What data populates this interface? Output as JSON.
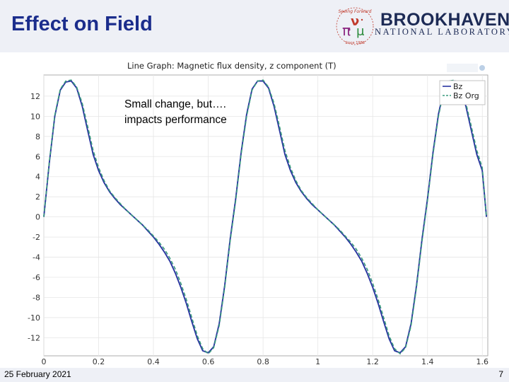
{
  "slide": {
    "title": "Effect on Field",
    "date": "25 February 2021",
    "page_number": "7",
    "annotation_line1": "Small change, but….",
    "annotation_line2": "impacts performance"
  },
  "logos": {
    "bnl_main": "BROOKHAVEN",
    "bnl_sub": "NATIONAL LABORATORY",
    "seal_text_top": "Seeing Forward",
    "seal_text_bottom": "Since 1988"
  },
  "colors": {
    "title": "#1b2d8c",
    "header_band": "#eef0f6",
    "bz": "#2a35a0",
    "bz_org": "#3a9a7e",
    "grid": "#e6e6e6"
  },
  "chart_data": {
    "type": "line",
    "title": "Line Graph: Magnetic flux density, z component (T)",
    "xlim": [
      0,
      1.62
    ],
    "ylim": [
      -13.8,
      14.1
    ],
    "x_ticks": [
      0,
      0.2,
      0.4,
      0.6,
      0.8,
      1,
      1.2,
      1.4,
      1.6
    ],
    "x_tick_labels": [
      "0",
      "0.2",
      "0.4",
      "0.6",
      "0.8",
      "1",
      "1.2",
      "1.4",
      "1.6"
    ],
    "y_ticks": [
      -12,
      -10,
      -8,
      -6,
      -4,
      -2,
      0,
      2,
      4,
      6,
      8,
      10,
      12
    ],
    "y_tick_labels": [
      "-12",
      "-10",
      "-8",
      "-6",
      "-4",
      "-2",
      "0",
      "2",
      "4",
      "6",
      "8",
      "10",
      "12"
    ],
    "grid": true,
    "legend_position": "top-right",
    "series": [
      {
        "name": "Bz",
        "style": "solid",
        "x": [
          0,
          0.02,
          0.04,
          0.06,
          0.08,
          0.1,
          0.12,
          0.14,
          0.16,
          0.18,
          0.2,
          0.22,
          0.24,
          0.26,
          0.28,
          0.3,
          0.32,
          0.34,
          0.36,
          0.38,
          0.4,
          0.42,
          0.44,
          0.46,
          0.48,
          0.5,
          0.52,
          0.54,
          0.56,
          0.58,
          0.6,
          0.62,
          0.64,
          0.66,
          0.68,
          0.7,
          0.72,
          0.74,
          0.76,
          0.78,
          0.8,
          0.82,
          0.84,
          0.86,
          0.88,
          0.9,
          0.92,
          0.94,
          0.96,
          0.98,
          1.0,
          1.02,
          1.04,
          1.06,
          1.08,
          1.1,
          1.12,
          1.14,
          1.16,
          1.18,
          1.2,
          1.22,
          1.24,
          1.26,
          1.28,
          1.3,
          1.32,
          1.34,
          1.36,
          1.38,
          1.4,
          1.42,
          1.44,
          1.46,
          1.48,
          1.5,
          1.52,
          1.54,
          1.56,
          1.58,
          1.6,
          1.615
        ],
        "values": [
          0,
          5.4,
          10.0,
          12.6,
          13.4,
          13.5,
          12.8,
          11.0,
          8.6,
          6.2,
          4.6,
          3.4,
          2.5,
          1.8,
          1.2,
          0.7,
          0.2,
          -0.3,
          -0.8,
          -1.4,
          -2.0,
          -2.7,
          -3.5,
          -4.4,
          -5.6,
          -7.0,
          -8.6,
          -10.4,
          -12.1,
          -13.3,
          -13.5,
          -12.9,
          -10.6,
          -6.8,
          -2.2,
          1.8,
          6.4,
          10.2,
          12.7,
          13.5,
          13.5,
          12.8,
          11.0,
          8.6,
          6.2,
          4.6,
          3.4,
          2.5,
          1.8,
          1.2,
          0.7,
          0.2,
          -0.3,
          -0.8,
          -1.4,
          -2.0,
          -2.7,
          -3.5,
          -4.4,
          -5.6,
          -7.0,
          -8.6,
          -10.4,
          -12.1,
          -13.3,
          -13.5,
          -12.9,
          -10.6,
          -6.8,
          -2.2,
          1.8,
          6.4,
          10.2,
          12.7,
          13.5,
          13.5,
          12.8,
          11.0,
          8.6,
          6.2,
          4.6,
          0
        ]
      },
      {
        "name": "Bz Org",
        "style": "dashed",
        "x": [
          0,
          0.02,
          0.04,
          0.06,
          0.08,
          0.1,
          0.12,
          0.14,
          0.16,
          0.18,
          0.2,
          0.22,
          0.24,
          0.26,
          0.28,
          0.3,
          0.32,
          0.34,
          0.36,
          0.38,
          0.4,
          0.42,
          0.44,
          0.46,
          0.48,
          0.5,
          0.52,
          0.54,
          0.56,
          0.58,
          0.6,
          0.62,
          0.64,
          0.66,
          0.68,
          0.7,
          0.72,
          0.74,
          0.76,
          0.78,
          0.8,
          0.82,
          0.84,
          0.86,
          0.88,
          0.9,
          0.92,
          0.94,
          0.96,
          0.98,
          1.0,
          1.02,
          1.04,
          1.06,
          1.08,
          1.1,
          1.12,
          1.14,
          1.16,
          1.18,
          1.2,
          1.22,
          1.24,
          1.26,
          1.28,
          1.3,
          1.32,
          1.34,
          1.36,
          1.38,
          1.4,
          1.42,
          1.44,
          1.46,
          1.48,
          1.5,
          1.52,
          1.54,
          1.56,
          1.58,
          1.6,
          1.615
        ],
        "values": [
          0,
          5.5,
          10.1,
          12.7,
          13.5,
          13.6,
          12.9,
          11.3,
          9.0,
          6.6,
          4.9,
          3.6,
          2.6,
          1.9,
          1.3,
          0.7,
          0.2,
          -0.3,
          -0.8,
          -1.3,
          -1.9,
          -2.5,
          -3.2,
          -4.1,
          -5.2,
          -6.6,
          -8.2,
          -10.0,
          -11.8,
          -13.1,
          -13.6,
          -13.0,
          -10.8,
          -7.0,
          -2.4,
          1.6,
          6.2,
          10.0,
          12.6,
          13.5,
          13.6,
          12.9,
          11.3,
          9.0,
          6.6,
          4.9,
          3.6,
          2.6,
          1.9,
          1.3,
          0.7,
          0.2,
          -0.3,
          -0.8,
          -1.3,
          -1.9,
          -2.5,
          -3.2,
          -4.1,
          -5.2,
          -6.6,
          -8.2,
          -10.0,
          -11.8,
          -13.1,
          -13.6,
          -13.0,
          -10.8,
          -7.0,
          -2.4,
          1.6,
          6.2,
          10.0,
          12.6,
          13.5,
          13.6,
          12.9,
          11.3,
          9.0,
          6.6,
          4.9,
          0
        ]
      }
    ]
  }
}
